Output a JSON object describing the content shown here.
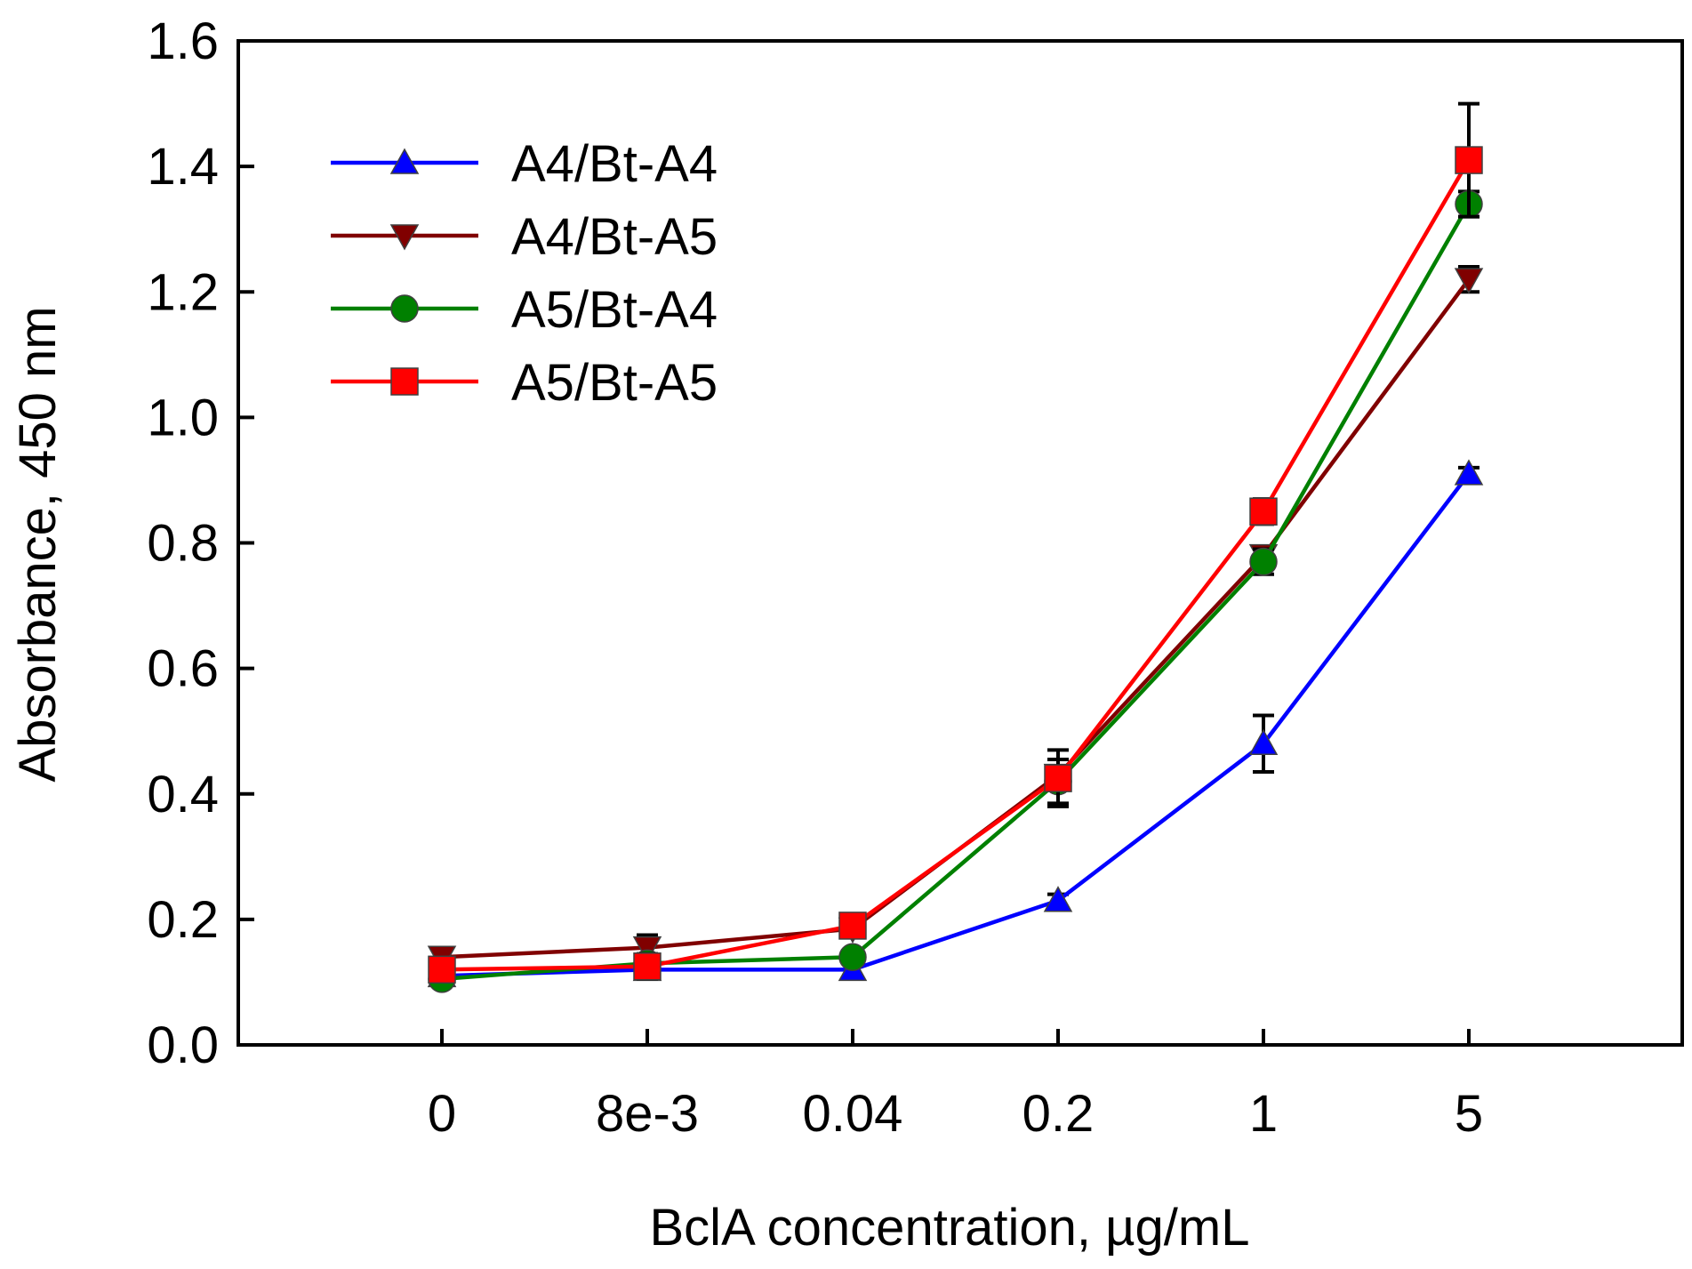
{
  "chart_data": {
    "type": "line",
    "title": "",
    "xlabel": "BclA concentration, µg/mL",
    "ylabel": "Absorbance, 450 nm",
    "categories": [
      "0",
      "8e-3",
      "0.04",
      "0.2",
      "1",
      "5"
    ],
    "ylim": [
      0,
      1.6
    ],
    "yticks": [
      "0.0",
      "0.2",
      "0.4",
      "0.6",
      "0.8",
      "1.0",
      "1.2",
      "1.4",
      "1.6"
    ],
    "grid": false,
    "legend_position": "top-left",
    "series": [
      {
        "name": "A4/Bt-A4",
        "color": "#0000ff",
        "marker": "triangle-up",
        "values": [
          0.11,
          0.12,
          0.12,
          0.23,
          0.48,
          0.91
        ],
        "errors": [
          0.01,
          0.01,
          0.01,
          0.01,
          0.045,
          0.01
        ]
      },
      {
        "name": "A4/Bt-A5",
        "color": "#800000",
        "marker": "triangle-down",
        "values": [
          0.14,
          0.155,
          0.185,
          0.43,
          0.78,
          1.22
        ],
        "errors": [
          0.015,
          0.02,
          0.01,
          0.01,
          0.015,
          0.02
        ]
      },
      {
        "name": "A5/Bt-A4",
        "color": "#008000",
        "marker": "circle",
        "values": [
          0.105,
          0.13,
          0.14,
          0.42,
          0.77,
          1.34
        ],
        "errors": [
          0.01,
          0.01,
          0.01,
          0.035,
          0.02,
          0.02
        ]
      },
      {
        "name": "A5/Bt-A5",
        "color": "#ff0000",
        "marker": "square",
        "values": [
          0.12,
          0.125,
          0.19,
          0.425,
          0.85,
          1.41
        ],
        "errors": [
          0.01,
          0.02,
          0.01,
          0.045,
          0.02,
          0.09
        ]
      }
    ]
  }
}
